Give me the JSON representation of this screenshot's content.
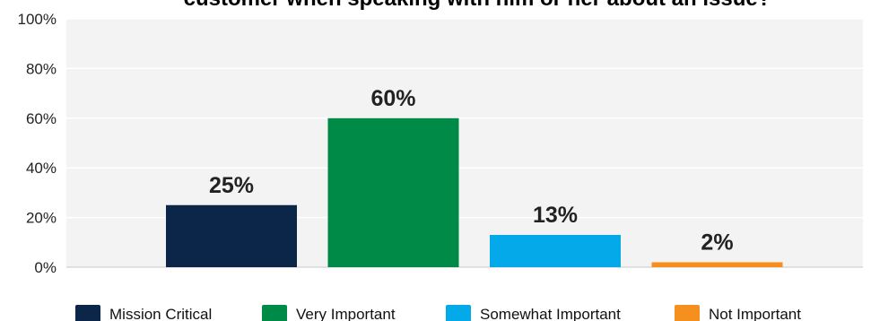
{
  "chart_data": {
    "type": "bar",
    "title": "customer when speaking with him or her about an issue?",
    "categories": [
      "Mission Critical",
      "Very Important",
      "Somewhat Important",
      "Not Important"
    ],
    "values": [
      25,
      60,
      13,
      2
    ],
    "data_labels": [
      "25%",
      "60%",
      "13%",
      "2%"
    ],
    "colors": [
      "#0c2649",
      "#008a47",
      "#03a9e9",
      "#f5901f"
    ],
    "ylim": [
      0,
      100
    ],
    "yticks": [
      0,
      20,
      40,
      60,
      80,
      100
    ],
    "ytick_labels": [
      "0%",
      "20%",
      "40%",
      "60%",
      "80%",
      "100%"
    ],
    "xlabel": "",
    "ylabel": "",
    "grid": true,
    "plot_background": "#f3f3f3",
    "grid_color": "#ffffff",
    "legend_position": "bottom"
  }
}
